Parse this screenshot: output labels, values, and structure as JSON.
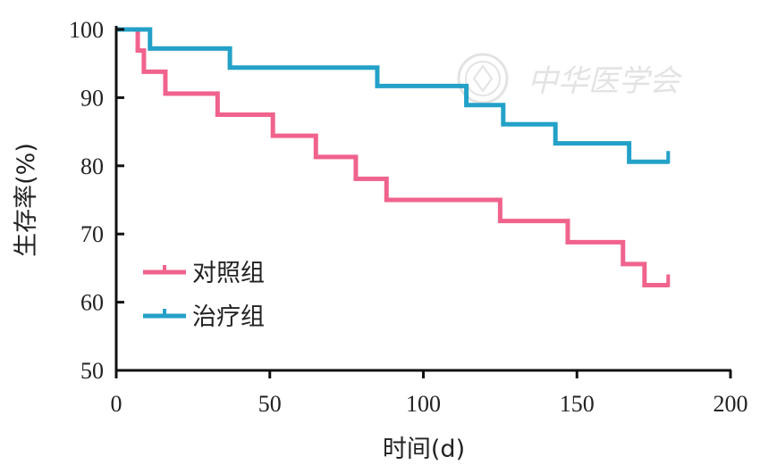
{
  "chart_data": {
    "type": "line",
    "step": true,
    "xlabel": "时间(d)",
    "ylabel": "生存率(%)",
    "xlim": [
      0,
      200
    ],
    "ylim": [
      50,
      100
    ],
    "xticks": [
      0,
      50,
      100,
      150,
      200
    ],
    "yticks": [
      50,
      60,
      70,
      80,
      90,
      100
    ],
    "grid": false,
    "legend_position": "bottom-left",
    "series": [
      {
        "name": "对照组",
        "color": "#f0638d",
        "x": [
          0,
          7,
          9,
          16,
          33,
          51,
          65,
          78,
          88,
          125,
          147,
          165,
          172,
          180
        ],
        "y": [
          100,
          96.9,
          93.8,
          90.6,
          87.5,
          84.4,
          81.3,
          78.1,
          75.0,
          71.9,
          68.8,
          65.6,
          62.5,
          62.5
        ],
        "censor_x": [
          180
        ]
      },
      {
        "name": "治疗组",
        "color": "#23a1c8",
        "x": [
          0,
          11,
          37,
          85,
          114,
          126,
          143,
          167,
          180
        ],
        "y": [
          100,
          97.2,
          94.4,
          91.7,
          88.9,
          86.1,
          83.3,
          80.6,
          80.6
        ],
        "censor_x": [
          180
        ]
      }
    ]
  },
  "watermark": {
    "text": "中华医学会",
    "color": "#e3e3e3"
  }
}
